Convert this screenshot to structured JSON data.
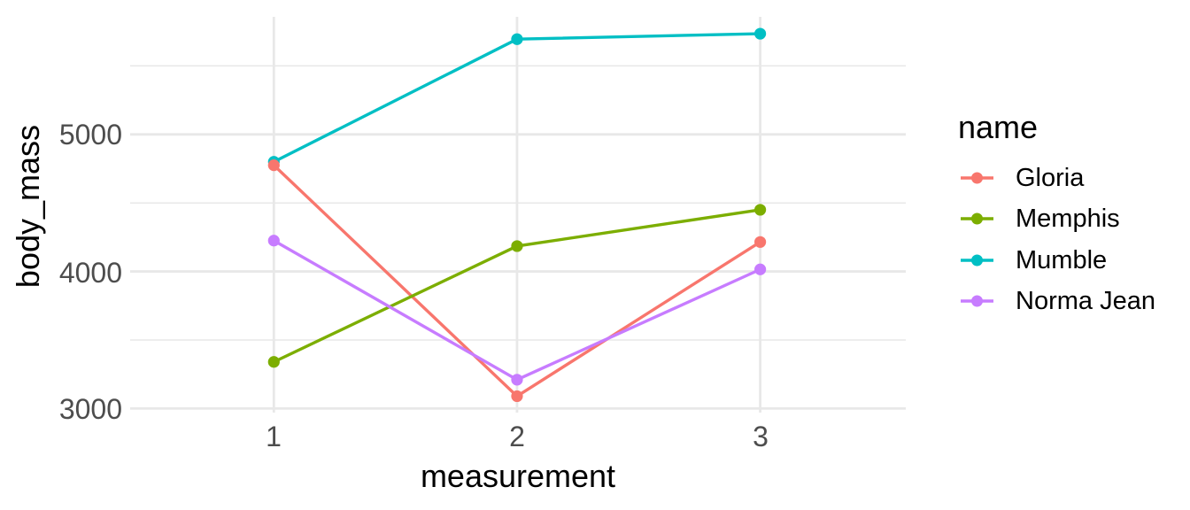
{
  "chart_data": {
    "type": "line",
    "title": "",
    "xlabel": "measurement",
    "ylabel": "body_mass",
    "legend_title": "name",
    "legend_position": "right",
    "grid": true,
    "x_axis_type": "discrete",
    "x": [
      1,
      2,
      3
    ],
    "x_tick_labels": [
      "1",
      "2",
      "3"
    ],
    "y_tick_labels": [
      "5000",
      "4000",
      "3000"
    ],
    "y_major_gridlines": [
      5000,
      4000,
      3000
    ],
    "y_minor_gridlines": [
      5500,
      4500,
      3500
    ],
    "ylim": [
      2970,
      5858
    ],
    "marker": "point",
    "series": [
      {
        "name": "Gloria",
        "color": "#F8766D",
        "values": [
          4775,
          3090,
          4215
        ]
      },
      {
        "name": "Memphis",
        "color": "#7CAE00",
        "values": [
          3340,
          4185,
          4450
        ]
      },
      {
        "name": "Mumble",
        "color": "#00BFC4",
        "values": [
          4800,
          5695,
          5735
        ]
      },
      {
        "name": "Norma Jean",
        "color": "#C77CFF",
        "values": [
          4225,
          3210,
          4015
        ]
      }
    ]
  }
}
